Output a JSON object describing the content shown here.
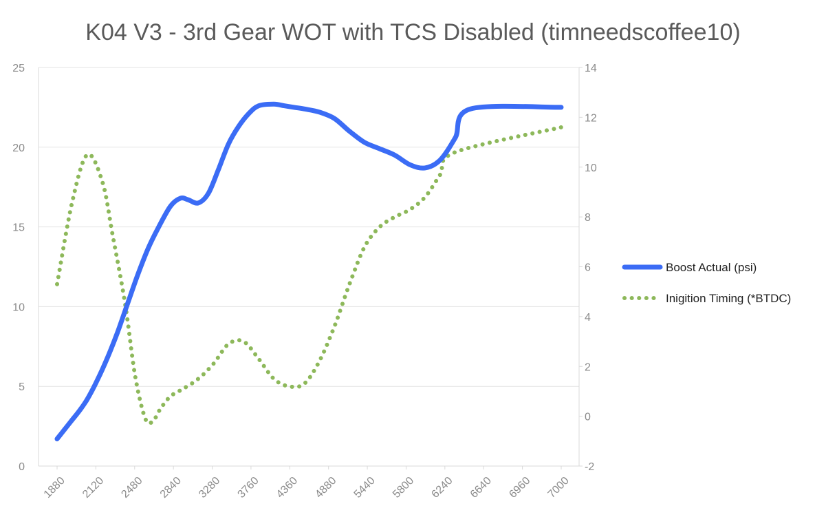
{
  "chart_data": {
    "type": "line",
    "title": "K04 V3 - 3rd Gear WOT with TCS Disabled (timneedscoffee10)",
    "xlabel": "",
    "ylabel": "",
    "y2label": "",
    "x_ticks": [
      "1880",
      "2120",
      "2480",
      "2840",
      "3280",
      "3760",
      "4360",
      "4880",
      "5440",
      "5800",
      "6240",
      "6640",
      "6960",
      "7000"
    ],
    "ylim": [
      0,
      25
    ],
    "y_ticks": [
      0,
      5,
      10,
      15,
      20,
      25
    ],
    "y2lim": [
      -2,
      14
    ],
    "y2_ticks": [
      -2,
      0,
      2,
      4,
      6,
      8,
      10,
      12,
      14
    ],
    "grid": true,
    "legend_position": "right",
    "series": [
      {
        "name": "Boost Actual (psi)",
        "axis": "left",
        "style": "solid",
        "color": "#3b6cf5",
        "x": [
          0,
          0.15,
          0.3,
          0.45,
          0.6,
          0.8,
          1.0,
          1.2,
          1.4,
          1.6,
          1.8,
          2.0,
          2.25,
          2.45,
          2.6,
          2.8,
          3.0,
          3.2,
          3.4,
          3.6,
          3.8,
          4.0,
          4.3,
          4.5,
          4.7,
          4.9,
          5.2,
          5.5,
          5.8,
          6.1,
          6.4,
          6.7,
          7.0,
          7.3,
          7.6,
          7.9,
          8.2,
          8.5,
          8.8,
          9.0,
          9.15,
          9.3,
          9.5,
          9.7,
          9.85,
          10.0
        ],
        "values": [
          1.7,
          2.3,
          2.9,
          3.5,
          4.2,
          5.4,
          6.8,
          8.4,
          10.2,
          12.0,
          13.6,
          14.9,
          16.3,
          16.8,
          16.7,
          16.5,
          17.1,
          18.6,
          20.2,
          21.3,
          22.1,
          22.6,
          22.7,
          22.6,
          22.5,
          22.4,
          22.2,
          21.8,
          21.0,
          20.3,
          19.9,
          19.5,
          18.9,
          18.7,
          19.2,
          20.6,
          22.4,
          22.5,
          22.5,
          22.5,
          22.5,
          22.5,
          22.5,
          22.5,
          22.5,
          22.5
        ]
      },
      {
        "name": "Inigition Timing (*BTDC)",
        "axis": "right",
        "style": "dotted",
        "color": "#8db85a",
        "x": [
          0,
          0.3,
          0.6,
          0.9,
          1.1,
          1.35,
          1.55,
          1.75,
          1.9,
          2.05,
          2.25,
          2.5,
          2.8,
          3.1,
          3.4,
          3.7,
          4.0,
          4.3,
          4.6,
          4.9,
          5.2,
          5.5,
          5.8,
          6.1,
          6.4,
          6.7,
          7.0,
          7.3,
          7.6,
          7.9,
          8.2,
          8.5,
          8.8,
          9.1,
          9.4,
          9.7,
          10.0
        ],
        "values": [
          5.3,
          8.6,
          10.5,
          9.4,
          7.3,
          4.5,
          1.6,
          -0.1,
          -0.2,
          0.3,
          0.8,
          1.1,
          1.5,
          2.1,
          2.9,
          3.0,
          2.3,
          1.5,
          1.2,
          1.3,
          2.2,
          3.6,
          5.3,
          6.8,
          7.6,
          8.0,
          8.3,
          8.8,
          9.7,
          10.6,
          11.6,
          11.6,
          11.6,
          11.6,
          11.6,
          11.6,
          11.6
        ]
      }
    ]
  }
}
